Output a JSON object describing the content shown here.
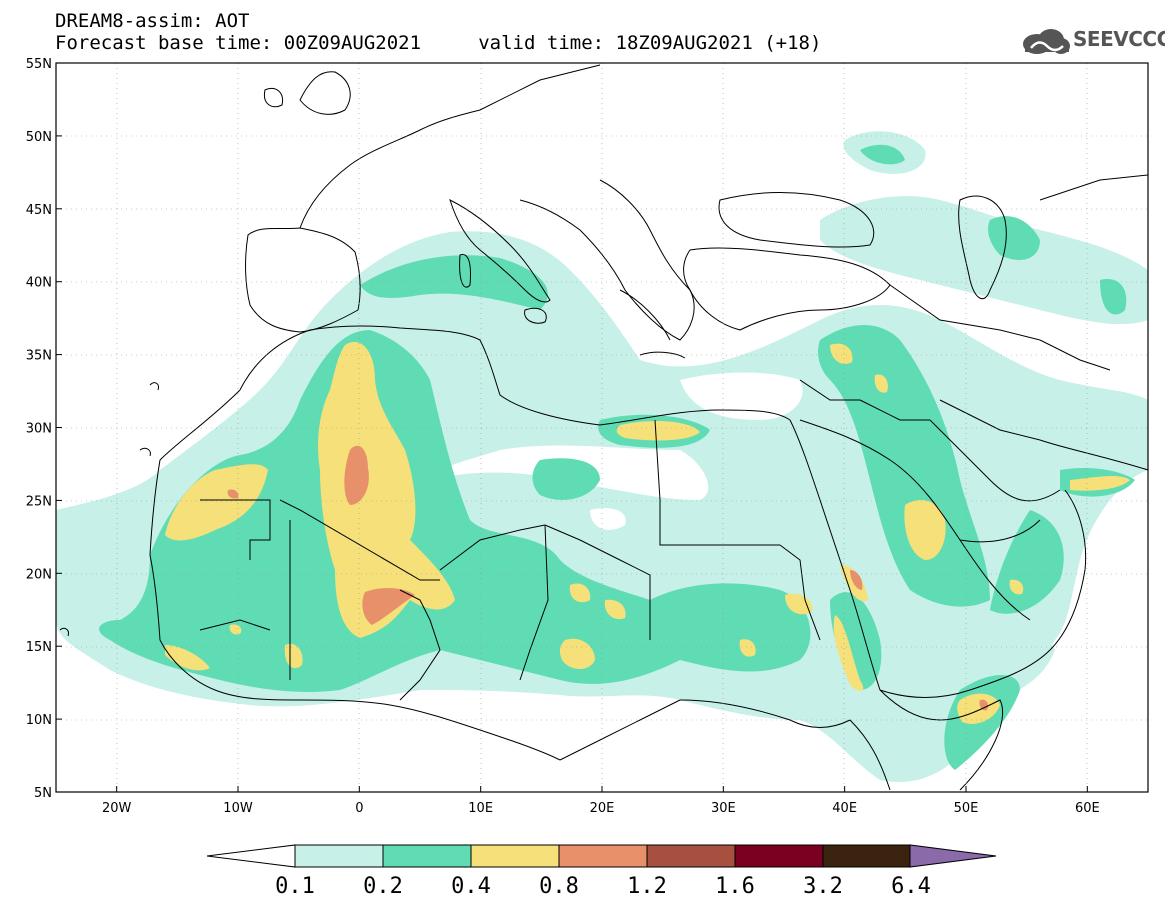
{
  "header": {
    "title_line1": "DREAM8-assim: AOT",
    "title_line2": "Forecast base time: 00Z09AUG2021     valid time: 18Z09AUG2021 (+18)",
    "logo_text": "SEEVCCC"
  },
  "map": {
    "lon_range": [
      -25,
      65
    ],
    "lat_range": [
      5,
      55
    ],
    "lat_labels": [
      "55N",
      "50N",
      "45N",
      "40N",
      "35N",
      "30N",
      "25N",
      "20N",
      "15N",
      "10N",
      "5N"
    ],
    "lat_values": [
      55,
      50,
      45,
      40,
      35,
      30,
      25,
      20,
      15,
      10,
      5
    ],
    "lon_labels": [
      "20W",
      "10W",
      "0",
      "10E",
      "20E",
      "30E",
      "40E",
      "50E",
      "60E"
    ],
    "lon_values": [
      -20,
      -10,
      0,
      10,
      20,
      30,
      40,
      50,
      60
    ]
  },
  "colorbar": {
    "labels": [
      "0.1",
      "0.2",
      "0.4",
      "0.8",
      "1.2",
      "1.6",
      "3.2",
      "6.4"
    ],
    "colors": [
      "#ffffff",
      "#c6f0e8",
      "#5fdcb4",
      "#f5e07a",
      "#e8906a",
      "#a85040",
      "#7a0020",
      "#3a2410",
      "#8a6aa8"
    ]
  },
  "legend_colors": {
    "lvl1": "#c6f0e8",
    "lvl2": "#5fdcb4",
    "lvl3": "#f5e07a",
    "lvl4": "#e8906a"
  }
}
